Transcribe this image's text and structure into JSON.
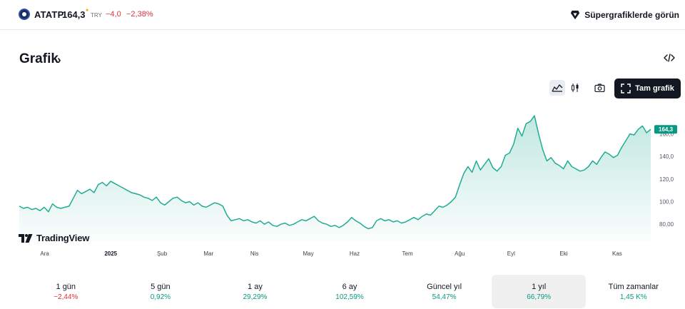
{
  "header": {
    "symbol": "ATATP",
    "price": "164,3",
    "currency": "TRY",
    "change": "−4,0",
    "change_pct": "−2,38%",
    "supercharts_label": "Süpergrafiklerde görün"
  },
  "section": {
    "title": "Grafik"
  },
  "toolbar": {
    "full_chart_label": "Tam grafik"
  },
  "branding": {
    "name": "TradingView"
  },
  "colors": {
    "up": "#089981",
    "down": "#e0313d",
    "line": "#22ab94"
  },
  "icons": [
    "logo-icon",
    "supercharts-icon",
    "chevron-right-icon",
    "embed-code-icon",
    "area-chart-icon",
    "candles-icon",
    "camera-icon",
    "fullscreen-icon",
    "tradingview-logo-icon"
  ],
  "periods": [
    {
      "label": "1 gün",
      "value": "−2,44%",
      "dir": "down"
    },
    {
      "label": "5 gün",
      "value": "0,92%",
      "dir": "up"
    },
    {
      "label": "1 ay",
      "value": "29,29%",
      "dir": "up"
    },
    {
      "label": "6 ay",
      "value": "102,59%",
      "dir": "up"
    },
    {
      "label": "Güncel yıl",
      "value": "54,47%",
      "dir": "up"
    },
    {
      "label": "1 yıl",
      "value": "66,79%",
      "dir": "up",
      "active": true
    },
    {
      "label": "Tüm zamanlar",
      "value": "1,45 K%",
      "dir": "up"
    }
  ],
  "chart_data": {
    "type": "area",
    "series": [
      {
        "values": [
          96,
          94,
          95,
          93,
          94,
          92,
          95,
          91,
          98,
          95,
          94,
          95,
          96,
          103,
          110,
          107,
          109,
          111,
          108,
          115,
          117,
          114,
          118,
          116,
          114,
          112,
          110,
          108,
          107,
          106,
          104,
          103,
          101,
          104,
          99,
          97,
          100,
          103,
          104,
          101,
          99,
          100,
          97,
          99,
          96,
          95,
          97,
          99,
          98,
          96,
          88,
          83,
          84,
          85,
          83,
          84,
          82,
          81,
          83,
          80,
          82,
          79,
          78,
          80,
          81,
          79,
          80,
          82,
          84,
          83,
          85,
          87,
          83,
          81,
          80,
          78,
          79,
          77,
          79,
          82,
          86,
          83,
          81,
          78,
          76,
          77,
          83,
          85,
          83,
          84,
          82,
          83,
          81,
          82,
          84,
          86,
          84,
          87,
          89,
          88,
          92,
          96,
          95,
          97,
          100,
          104,
          115,
          125,
          131,
          126,
          136,
          128,
          133,
          138,
          130,
          127,
          131,
          141,
          143,
          151,
          165,
          158,
          169,
          171,
          176,
          160,
          146,
          136,
          139,
          134,
          132,
          129,
          136,
          131,
          129,
          127,
          128,
          131,
          136,
          133,
          139,
          144,
          142,
          139,
          141,
          148,
          154,
          160,
          159,
          164,
          167,
          161,
          164
        ]
      }
    ],
    "x_labels": [
      {
        "label": "Ara",
        "bold": false,
        "pos": 0.02
      },
      {
        "label": "2025",
        "bold": true,
        "pos": 0.13
      },
      {
        "label": "Şub",
        "bold": false,
        "pos": 0.22
      },
      {
        "label": "Mar",
        "bold": false,
        "pos": 0.3
      },
      {
        "label": "Nis",
        "bold": false,
        "pos": 0.38
      },
      {
        "label": "May",
        "bold": false,
        "pos": 0.47
      },
      {
        "label": "Haz",
        "bold": false,
        "pos": 0.55
      },
      {
        "label": "Tem",
        "bold": false,
        "pos": 0.64
      },
      {
        "label": "Ağu",
        "bold": false,
        "pos": 0.73
      },
      {
        "label": "Eyl",
        "bold": false,
        "pos": 0.82
      },
      {
        "label": "Eki",
        "bold": false,
        "pos": 0.91
      },
      {
        "label": "Kas",
        "bold": false,
        "pos": 1.0
      }
    ],
    "y_ticks": [
      "80,00",
      "100,0",
      "120,0",
      "140,0",
      "160,0"
    ],
    "y_tick_values": [
      80,
      100,
      120,
      140,
      160
    ],
    "ylim": [
      70,
      185
    ],
    "last_value_label": "164,3",
    "grid": false
  }
}
